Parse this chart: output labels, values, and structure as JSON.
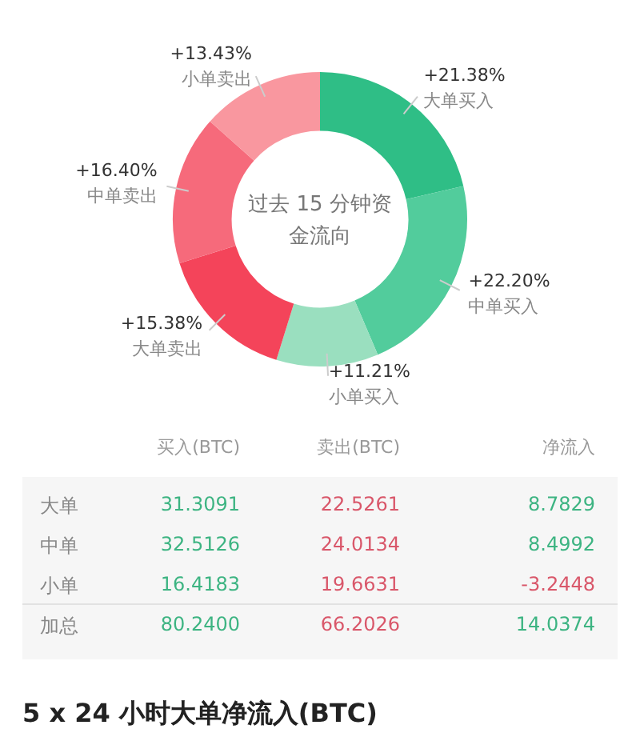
{
  "chart_data": [
    {
      "type": "donut",
      "title": "过去 15 分钟资金流向",
      "categories": [
        "大单买入",
        "中单买入",
        "小单买入",
        "大单卖出",
        "中单卖出",
        "小单卖出"
      ],
      "values": [
        21.38,
        22.2,
        11.21,
        15.38,
        16.4,
        13.43
      ],
      "value_labels": [
        "+21.38%",
        "+22.20%",
        "+11.21%",
        "+15.38%",
        "+16.40%",
        "+13.43%"
      ],
      "colors": [
        "#2fbe86",
        "#52cc9c",
        "#9adfbf",
        "#f4445a",
        "#f66a7b",
        "#f9979f"
      ],
      "legend": false
    },
    {
      "type": "other",
      "annotations": [
        "买入(BTC)",
        "卖出(BTC)",
        "净流入",
        "大单",
        "31.3091",
        "22.5261",
        "8.7829",
        "中单",
        "32.5126",
        "24.0134",
        "8.4992",
        "小单",
        "16.4183",
        "19.6631",
        "-3.2448",
        "加总",
        "80.2400",
        "66.2026",
        "14.0374",
        "5 x 24 小时大单净流入(BTC)"
      ]
    }
  ]
}
